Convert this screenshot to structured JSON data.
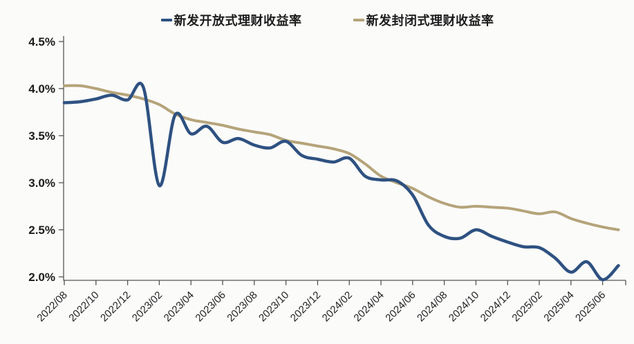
{
  "page": {
    "background": "#fbfbfa"
  },
  "chart_data": {
    "type": "line",
    "title": "",
    "xlabel": "",
    "ylabel": "",
    "grid": false,
    "legend_position": "top-center",
    "ylim": [
      2.0,
      4.5
    ],
    "y_tick_labels": [
      "4.5%",
      "4.0%",
      "3.5%",
      "3.0%",
      "2.5%",
      "2.0%"
    ],
    "y_tick_values": [
      4.5,
      4.0,
      3.5,
      3.0,
      2.5,
      2.0
    ],
    "x": [
      "2022/08",
      "2022/09",
      "2022/10",
      "2022/11",
      "2022/12",
      "2023/01",
      "2023/02",
      "2023/03",
      "2023/04",
      "2023/05",
      "2023/06",
      "2023/07",
      "2023/08",
      "2023/09",
      "2023/10",
      "2023/11",
      "2023/12",
      "2024/01",
      "2024/02",
      "2024/03",
      "2024/04",
      "2024/05",
      "2024/06",
      "2024/07",
      "2024/08",
      "2024/09",
      "2024/10",
      "2024/11",
      "2024/12",
      "2025/01",
      "2025/02",
      "2025/03",
      "2025/04",
      "2025/05",
      "2025/06",
      "2025/07"
    ],
    "x_tick_labels": [
      "2022/08",
      "2022/10",
      "2022/12",
      "2023/02",
      "2023/04",
      "2023/06",
      "2023/08",
      "2023/10",
      "2023/12",
      "2024/02",
      "2024/04",
      "2024/06",
      "2024/08",
      "2024/10",
      "2024/12",
      "2025/02",
      "2025/04",
      "2025/06"
    ],
    "series": [
      {
        "name": "新发开放式理财收益率",
        "color": "#2e5181",
        "line_width": 4.5,
        "values": [
          3.85,
          3.86,
          3.89,
          3.93,
          3.88,
          4.01,
          2.97,
          3.72,
          3.52,
          3.6,
          3.43,
          3.47,
          3.4,
          3.37,
          3.44,
          3.29,
          3.25,
          3.22,
          3.26,
          3.07,
          3.03,
          3.02,
          2.87,
          2.55,
          2.43,
          2.41,
          2.5,
          2.43,
          2.37,
          2.32,
          2.31,
          2.2,
          2.05,
          2.16,
          1.97,
          2.12
        ]
      },
      {
        "name": "新发封闭式理财收益率",
        "color": "#b5a47a",
        "line_width": 4,
        "values": [
          4.03,
          4.03,
          4.0,
          3.96,
          3.93,
          3.89,
          3.83,
          3.73,
          3.67,
          3.64,
          3.61,
          3.57,
          3.54,
          3.51,
          3.45,
          3.42,
          3.39,
          3.36,
          3.31,
          3.2,
          3.07,
          3.0,
          2.94,
          2.85,
          2.78,
          2.74,
          2.75,
          2.74,
          2.73,
          2.7,
          2.67,
          2.69,
          2.62,
          2.57,
          2.53,
          2.5
        ]
      }
    ],
    "axis_color": "#555555"
  }
}
